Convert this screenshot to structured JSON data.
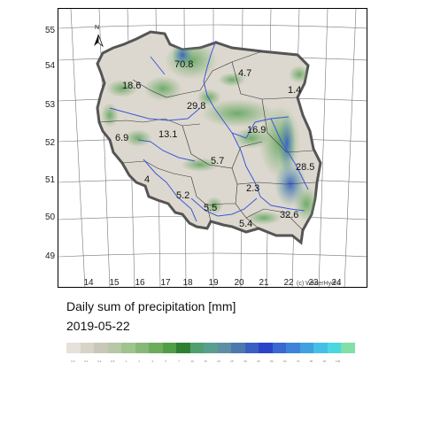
{
  "title": "Daily sum of precipitation [mm]",
  "date": "2019-05-22",
  "copyright": "(c) WetterHydro",
  "north_label": "N",
  "latitude_labels": [
    "55",
    "54",
    "53",
    "52",
    "51",
    "50",
    "49"
  ],
  "longitude_labels": [
    "14",
    "15",
    "16",
    "17",
    "18",
    "19",
    "20",
    "21",
    "22",
    "23",
    "24"
  ],
  "region_values": [
    "70.8",
    "4.7",
    "18.6",
    "1.4",
    "29.8",
    "16.9",
    "6.9",
    "13.1",
    "5.7",
    "28.5",
    "4",
    "2.3",
    "5.2",
    "5.5",
    "32.6",
    "5.4"
  ],
  "legend": {
    "colors": [
      "#e6e1da",
      "#d8d3c9",
      "#c9c8b8",
      "#b7c7a7",
      "#9fc48e",
      "#87b878",
      "#6cac5c",
      "#4f9e45",
      "#2f7f32",
      "#4fa070",
      "#5a9e8f",
      "#5d8ea3",
      "#4c78b0",
      "#3a5fc0",
      "#2a44c8",
      "#3a68d0",
      "#3d84d8",
      "#40a0e0",
      "#44c0e8",
      "#4ad8e0",
      "#80e0a8"
    ],
    "tick_labels": [
      "0.0",
      "0.1",
      "0.2",
      "0.5",
      "1",
      "2",
      "3",
      "5",
      "7",
      "10",
      "15",
      "20",
      "25",
      "30",
      "40",
      "50",
      "60",
      "70",
      "80",
      "90",
      "100"
    ]
  }
}
